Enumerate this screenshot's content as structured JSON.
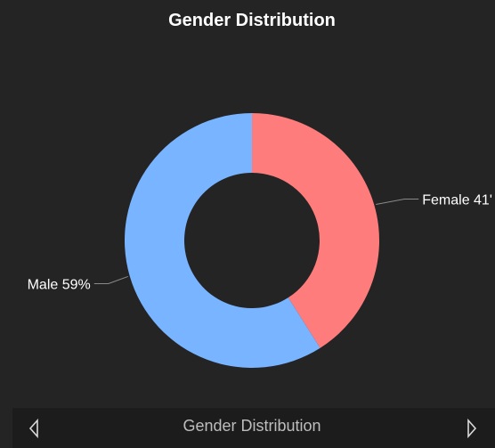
{
  "chart_data": {
    "type": "pie",
    "title": "Gender Distribution",
    "categories": [
      "Male",
      "Female"
    ],
    "values": [
      59,
      41
    ],
    "labels": [
      "Male 59%",
      "Female 41'"
    ],
    "colors": [
      "#78b4ff",
      "#ff7c7c"
    ],
    "donut": true,
    "legend": "none"
  },
  "footer": {
    "label": "Gender Distribution",
    "prev_icon": "chevron-left-icon",
    "next_icon": "chevron-right-icon"
  },
  "colors": {
    "background": "#242424",
    "footer_background": "#1c1c1c",
    "leader_line": "#8a8a8a",
    "label_text": "#ffffff",
    "nav_icon": "#d9d9d9"
  }
}
